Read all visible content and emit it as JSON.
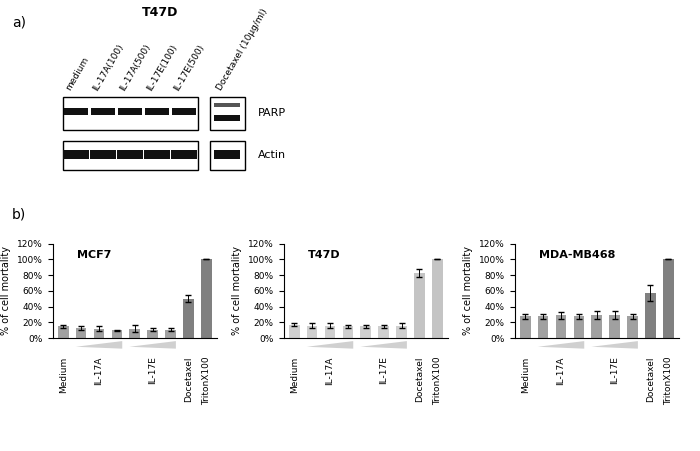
{
  "panel_labels": [
    "a)",
    "b)"
  ],
  "blot": {
    "title": "T47D",
    "lanes": [
      "medium",
      "IL-17A(100)",
      "IL-17A(500)",
      "IL-17E(100)",
      "IL-17E(500)",
      "Docetaxel (10µg/ml)"
    ],
    "rows": [
      "PARP",
      "Actin"
    ]
  },
  "chart_data": [
    {
      "type": "bar",
      "title": "MCF7",
      "categories": [
        "Medium",
        null,
        "IL-17A",
        null,
        null,
        "IL-17E",
        null,
        "Docetaxel",
        "TritonX100"
      ],
      "values": [
        15,
        13,
        12,
        10,
        12,
        11,
        11,
        50,
        100
      ],
      "errors": [
        1.5,
        2,
        3,
        1,
        4.5,
        2,
        1.5,
        4.5,
        0
      ],
      "colors": [
        "#a0a0a0",
        "#a0a0a0",
        "#a0a0a0",
        "#a0a0a0",
        "#a0a0a0",
        "#a0a0a0",
        "#a0a0a0",
        "#808080",
        "#808080"
      ],
      "ylim": [
        0,
        120
      ],
      "yticks": [
        {
          "value": 0,
          "label": "0%"
        },
        {
          "value": 20,
          "label": "20%"
        },
        {
          "value": 40,
          "label": "40%"
        },
        {
          "value": 60,
          "label": "60%"
        },
        {
          "value": 80,
          "label": "80%"
        },
        {
          "value": 100,
          "label": "100%"
        },
        {
          "value": 120,
          "label": "120%"
        }
      ],
      "y_label": "% of cell mortality",
      "grid": false
    },
    {
      "type": "bar",
      "title": "T47D",
      "categories": [
        "Medium",
        null,
        "IL-17A",
        null,
        null,
        "IL-17E",
        null,
        "Docetaxel",
        "TritonX100"
      ],
      "values": [
        17,
        16,
        16,
        15,
        15,
        15,
        16,
        83,
        100
      ],
      "errors": [
        2,
        3,
        3,
        2,
        2,
        2,
        3,
        5,
        0
      ],
      "colors": [
        "#cfcfcf",
        "#cfcfcf",
        "#cfcfcf",
        "#cfcfcf",
        "#cfcfcf",
        "#cfcfcf",
        "#cfcfcf",
        "#c4c4c4",
        "#c4c4c4"
      ],
      "ylim": [
        0,
        120
      ],
      "yticks": [
        {
          "value": 0,
          "label": "0%"
        },
        {
          "value": 20,
          "label": "20%"
        },
        {
          "value": 40,
          "label": "40%"
        },
        {
          "value": 60,
          "label": "60%"
        },
        {
          "value": 80,
          "label": "80%"
        },
        {
          "value": 100,
          "label": "100%"
        },
        {
          "value": 120,
          "label": "120%"
        }
      ],
      "y_label": "% of cell mortality",
      "grid": false
    },
    {
      "type": "bar",
      "title": "MDA-MB468",
      "categories": [
        "Medium",
        null,
        "IL-17A",
        null,
        null,
        "IL-17E",
        null,
        "Docetaxel",
        "TritonX100"
      ],
      "values": [
        28,
        28,
        29,
        28,
        29,
        29,
        28,
        57,
        100
      ],
      "errors": [
        3,
        3,
        4,
        3,
        5,
        5,
        3,
        10,
        0
      ],
      "colors": [
        "#a0a0a0",
        "#a0a0a0",
        "#a0a0a0",
        "#a0a0a0",
        "#a0a0a0",
        "#a0a0a0",
        "#a0a0a0",
        "#808080",
        "#808080"
      ],
      "ylim": [
        0,
        120
      ],
      "yticks": [
        {
          "value": 0,
          "label": "0%"
        },
        {
          "value": 20,
          "label": "20%"
        },
        {
          "value": 40,
          "label": "40%"
        },
        {
          "value": 60,
          "label": "60%"
        },
        {
          "value": 80,
          "label": "80%"
        },
        {
          "value": 100,
          "label": "100%"
        },
        {
          "value": 120,
          "label": "120%"
        }
      ],
      "y_label": "% of cell mortality",
      "grid": false
    }
  ]
}
